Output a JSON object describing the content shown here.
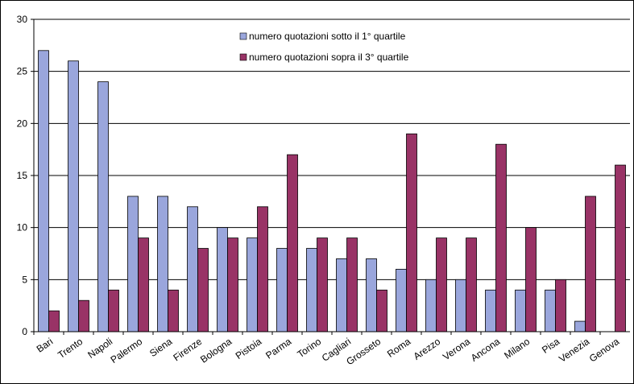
{
  "chart_data": {
    "type": "bar",
    "categories": [
      "Bari",
      "Trento",
      "Napoli",
      "Palermo",
      "Siena",
      "Firenze",
      "Bologna",
      "Pistoia",
      "Parma",
      "Torino",
      "Cagliari",
      "Grosseto",
      "Roma",
      "Arezzo",
      "Verona",
      "Ancona",
      "Milano",
      "Pisa",
      "Venezia",
      "Genova"
    ],
    "series": [
      {
        "name": "numero quotazioni sotto il 1° quartile",
        "color": "#9aa6dc",
        "values": [
          27,
          26,
          24,
          13,
          13,
          12,
          10,
          9,
          8,
          8,
          7,
          7,
          6,
          5,
          5,
          4,
          4,
          4,
          1,
          0
        ]
      },
      {
        "name": "numero quotazioni sopra il 3° quartile",
        "color": "#993366",
        "values": [
          2,
          3,
          4,
          9,
          4,
          8,
          9,
          12,
          17,
          9,
          9,
          4,
          19,
          9,
          9,
          18,
          10,
          5,
          13,
          16
        ]
      }
    ],
    "ylim": [
      0,
      30
    ],
    "yticks": [
      0,
      5,
      10,
      15,
      20,
      25,
      30
    ],
    "grid": true
  }
}
